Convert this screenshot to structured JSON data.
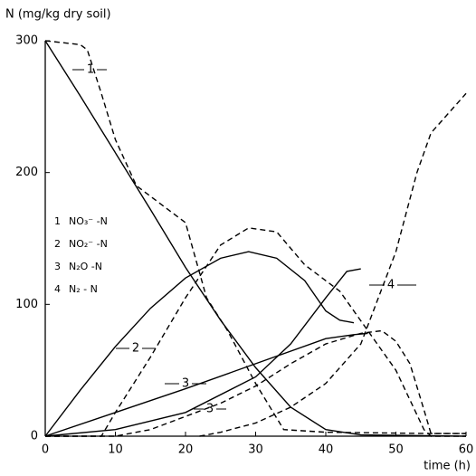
{
  "chart_data": {
    "type": "line",
    "ylabel": "N (mg/kg dry soil)",
    "xlabel": "time (h)",
    "xlim": [
      0,
      60
    ],
    "xticks": [
      0,
      10,
      20,
      30,
      40,
      50,
      60
    ],
    "ylim": [
      0,
      300
    ],
    "yticks": [
      0,
      100,
      200,
      300
    ],
    "legend": [
      {
        "key": "1",
        "label": "NO₃⁻ -N"
      },
      {
        "key": "2",
        "label": "NO₂⁻ -N"
      },
      {
        "key": "3",
        "label": "N₂O -N"
      },
      {
        "key": "4",
        "label": "N₂ - N"
      }
    ],
    "series": [
      {
        "color": "#000",
        "dash": false,
        "x": [
          0,
          5,
          10,
          15,
          20,
          25,
          30,
          35,
          40,
          45,
          60
        ],
        "values": [
          300,
          258,
          215,
          172,
          128,
          88,
          52,
          22,
          5,
          1,
          0
        ]
      },
      {
        "color": "#000",
        "dash": true,
        "label": "1",
        "x": [
          0,
          5,
          6,
          8,
          10,
          13,
          15,
          18,
          20,
          23,
          26,
          30,
          34,
          40,
          55,
          60
        ],
        "values": [
          300,
          297,
          293,
          260,
          225,
          190,
          182,
          170,
          162,
          105,
          80,
          40,
          5,
          3,
          2,
          2
        ]
      },
      {
        "color": "#000",
        "dash": false,
        "label": "2",
        "x": [
          0,
          5,
          10,
          15,
          20,
          25,
          29,
          33,
          37,
          40,
          42,
          44
        ],
        "values": [
          0,
          35,
          68,
          97,
          120,
          135,
          140,
          135,
          118,
          95,
          88,
          86
        ]
      },
      {
        "color": "#000",
        "dash": true,
        "x": [
          0,
          8,
          10,
          15,
          20,
          25,
          29,
          33,
          37,
          42,
          46,
          50,
          54,
          55,
          60
        ],
        "values": [
          0,
          0,
          18,
          60,
          105,
          145,
          158,
          155,
          130,
          110,
          80,
          50,
          5,
          0,
          0
        ]
      },
      {
        "color": "#000",
        "dash": false,
        "label": "3",
        "x": [
          0,
          10,
          20,
          30,
          40,
          44,
          46
        ],
        "values": [
          0,
          18,
          36,
          55,
          74,
          77,
          78
        ]
      },
      {
        "color": "#000",
        "dash": true,
        "label": "3",
        "x": [
          0,
          10,
          15,
          20,
          25,
          30,
          35,
          40,
          45,
          48,
          50,
          52,
          54,
          55,
          60
        ],
        "values": [
          0,
          0,
          5,
          15,
          25,
          38,
          55,
          70,
          78,
          80,
          72,
          55,
          20,
          2,
          2
        ]
      },
      {
        "color": "#000",
        "dash": false,
        "label": "4",
        "x": [
          0,
          10,
          20,
          30,
          35,
          40,
          43,
          45
        ],
        "values": [
          0,
          5,
          18,
          45,
          70,
          105,
          125,
          127
        ]
      },
      {
        "color": "#000",
        "dash": true,
        "x": [
          22,
          25,
          30,
          35,
          40,
          45,
          50,
          53,
          55,
          60
        ],
        "values": [
          0,
          3,
          10,
          22,
          40,
          70,
          140,
          200,
          230,
          260
        ]
      }
    ]
  }
}
